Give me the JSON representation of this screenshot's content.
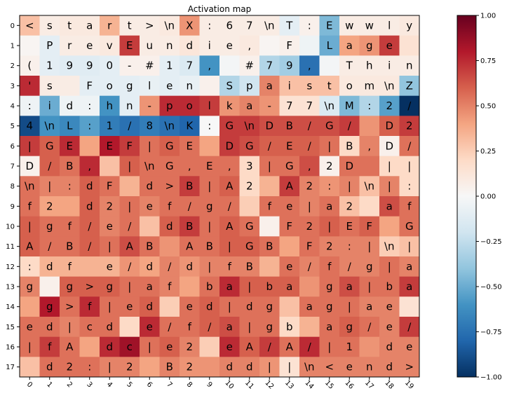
{
  "chart_data": {
    "type": "heatmap",
    "title": "Activation map",
    "x_ticks": [
      "0",
      "1",
      "2",
      "3",
      "4",
      "5",
      "6",
      "7",
      "8",
      "9",
      "10",
      "11",
      "12",
      "13",
      "14",
      "15",
      "16",
      "17",
      "18",
      "19"
    ],
    "y_ticks": [
      "0",
      "1",
      "2",
      "3",
      "4",
      "5",
      "6",
      "7",
      "8",
      "9",
      "10",
      "11",
      "12",
      "13",
      "14",
      "15",
      "16",
      "17"
    ],
    "colorbar": {
      "ticks": [
        "1.00",
        "0.75",
        "0.50",
        "0.25",
        "0.00",
        "−0.25",
        "−0.50",
        "−0.75",
        "−1.00"
      ],
      "range": [
        -1,
        1
      ],
      "colormap": "RdBu_r"
    },
    "rows": [
      {
        "chars": [
          "<",
          "s",
          "t",
          "a",
          "r",
          "t",
          ">",
          "\\n",
          "X",
          ":",
          "6",
          "7",
          "\\n",
          "T",
          ":",
          "E",
          "w",
          "w",
          "l",
          "y"
        ],
        "values": [
          0.3,
          0.08,
          0.1,
          0.1,
          0.35,
          0.08,
          0.08,
          0.1,
          0.45,
          0.08,
          0.08,
          0.08,
          0.08,
          -0.1,
          0.05,
          -0.45,
          0.08,
          0.08,
          0.08,
          0.1
        ]
      },
      {
        "chars": [
          "",
          "P",
          "r",
          "e",
          "v",
          "E",
          "u",
          "n",
          "d",
          "i",
          "e",
          ",",
          "",
          "F",
          "",
          "L",
          "a",
          "g",
          "e",
          ""
        ],
        "values": [
          0.02,
          -0.1,
          0.08,
          0.08,
          0.1,
          0.7,
          0.08,
          0.08,
          0.12,
          0.08,
          0.08,
          0.1,
          0.02,
          0.05,
          -0.05,
          -0.5,
          0.4,
          0.45,
          0.7,
          0.15
        ]
      },
      {
        "chars": [
          "(",
          "1",
          "9",
          "9",
          "0",
          "-",
          "#",
          "1",
          "7",
          ",",
          "",
          "#",
          "7",
          "9",
          ",",
          "",
          "T",
          "h",
          "i",
          "n"
        ],
        "values": [
          0.05,
          -0.1,
          -0.12,
          -0.12,
          -0.1,
          0.05,
          0.05,
          -0.1,
          -0.15,
          -0.6,
          -0.02,
          0.05,
          -0.3,
          -0.35,
          -0.75,
          -0.02,
          0.08,
          0.08,
          0.08,
          0.08
        ]
      },
      {
        "chars": [
          "'",
          "s",
          "",
          "F",
          "o",
          "g",
          "l",
          "e",
          "n",
          "",
          "S",
          "p",
          "a",
          "i",
          "s",
          "t",
          "o",
          "m",
          "\\n",
          "Z"
        ],
        "values": [
          0.75,
          0.08,
          0.08,
          -0.1,
          -0.1,
          -0.1,
          -0.08,
          -0.1,
          -0.08,
          0.05,
          -0.3,
          -0.2,
          0.5,
          0.3,
          0.3,
          0.3,
          0.1,
          0.1,
          0.1,
          -0.4
        ]
      },
      {
        "chars": [
          ":",
          "i",
          "d",
          ":",
          "h",
          "n",
          "-",
          "p",
          "o",
          "l",
          "k",
          "a",
          "-",
          "7",
          "7",
          "\\n",
          "M",
          ":",
          "2",
          "/"
        ],
        "values": [
          -0.05,
          -0.5,
          -0.05,
          -0.05,
          -0.6,
          -0.1,
          0.45,
          0.75,
          0.75,
          0.7,
          0.45,
          0.5,
          0.45,
          0.15,
          0.15,
          -0.15,
          -0.45,
          -0.3,
          -0.55,
          -1.0
        ]
      },
      {
        "chars": [
          "4",
          "\\n",
          "L",
          ":",
          "1",
          "/",
          "8",
          "\\n",
          "K",
          ":",
          "G",
          "\\n",
          "D",
          "B",
          "/",
          "G",
          "/",
          "",
          "D",
          "2"
        ],
        "values": [
          -0.9,
          -0.6,
          -0.65,
          -0.55,
          -0.7,
          -0.75,
          -0.7,
          -0.75,
          -0.8,
          0.0,
          0.7,
          0.7,
          0.65,
          0.65,
          0.65,
          0.65,
          0.7,
          0.45,
          0.6,
          0.7
        ]
      },
      {
        "chars": [
          "|",
          "G",
          "E",
          "",
          "E",
          "F",
          "|",
          "G",
          "E",
          "",
          "D",
          "G",
          "/",
          "E",
          "/",
          "|",
          "B",
          ",",
          "D",
          "/"
        ],
        "values": [
          0.7,
          0.6,
          0.75,
          0.4,
          0.8,
          0.7,
          0.55,
          0.6,
          0.55,
          0.4,
          0.7,
          0.65,
          0.6,
          0.6,
          0.6,
          0.55,
          0.2,
          0.5,
          0.05,
          0.55
        ]
      },
      {
        "chars": [
          "D",
          "/",
          "B",
          ",",
          "",
          "|",
          "\\n",
          "G",
          ",",
          "E",
          ",",
          "3",
          "|",
          "G",
          ",",
          "2",
          "D",
          "",
          "|",
          "|"
        ],
        "values": [
          0.05,
          0.6,
          0.55,
          0.75,
          0.3,
          0.6,
          0.55,
          0.55,
          0.55,
          0.55,
          0.55,
          0.2,
          0.55,
          0.55,
          0.65,
          0.05,
          0.55,
          0.55,
          0.2,
          0.2
        ]
      },
      {
        "chars": [
          "\\n",
          "|",
          ":",
          "d",
          "F",
          "",
          "d",
          ">",
          "B",
          "|",
          "A",
          "2",
          "",
          "A",
          "2",
          ":",
          "|",
          "\\n",
          "|",
          ":"
        ],
        "values": [
          0.55,
          0.5,
          0.5,
          0.6,
          0.55,
          0.35,
          0.55,
          0.55,
          0.7,
          0.55,
          0.6,
          0.2,
          0.35,
          0.7,
          0.5,
          0.45,
          0.5,
          0.3,
          0.5,
          0.2
        ]
      },
      {
        "chars": [
          "f",
          "2",
          "",
          "d",
          "2",
          "|",
          "e",
          "f",
          "/",
          "g",
          "/",
          "",
          "f",
          "e",
          "|",
          "a",
          "2",
          "",
          "a",
          "f"
        ],
        "values": [
          0.55,
          0.4,
          0.4,
          0.6,
          0.5,
          0.55,
          0.5,
          0.55,
          0.55,
          0.55,
          0.55,
          0.25,
          0.55,
          0.55,
          0.5,
          0.55,
          0.3,
          0.2,
          0.65,
          0.55
        ]
      },
      {
        "chars": [
          "|",
          "g",
          "f",
          "/",
          "e",
          "/",
          "",
          "d",
          "B",
          "|",
          "A",
          "G",
          "",
          "F",
          "2",
          "|",
          "E",
          "F",
          "",
          "G"
        ],
        "values": [
          0.6,
          0.55,
          0.55,
          0.6,
          0.5,
          0.55,
          0.3,
          0.6,
          0.7,
          0.55,
          0.6,
          0.55,
          0.05,
          0.55,
          0.55,
          0.6,
          0.55,
          0.6,
          0.4,
          0.55
        ]
      },
      {
        "chars": [
          "A",
          "/",
          "B",
          "/",
          "|",
          "A",
          "B",
          "",
          "A",
          "B",
          "|",
          "G",
          "B",
          "",
          "F",
          "2",
          ":",
          "|",
          "\\n",
          "|"
        ],
        "values": [
          0.6,
          0.55,
          0.55,
          0.6,
          0.55,
          0.65,
          0.55,
          0.45,
          0.55,
          0.55,
          0.6,
          0.6,
          0.55,
          0.4,
          0.55,
          0.5,
          0.5,
          0.5,
          0.25,
          0.3
        ]
      },
      {
        "chars": [
          ":",
          "d",
          "f",
          "",
          "e",
          "/",
          "d",
          "/",
          "d",
          "|",
          "f",
          "B",
          "",
          "e",
          "/",
          "f",
          "/",
          "g",
          "|",
          "a"
        ],
        "values": [
          0.2,
          0.35,
          0.35,
          0.35,
          0.35,
          0.45,
          0.4,
          0.5,
          0.45,
          0.5,
          0.5,
          0.5,
          0.35,
          0.55,
          0.5,
          0.55,
          0.5,
          0.5,
          0.55,
          0.5
        ]
      },
      {
        "chars": [
          "g",
          "",
          "g",
          ">",
          "g",
          "|",
          "a",
          "f",
          "",
          "b",
          "a",
          "|",
          "b",
          "a",
          "",
          "g",
          "a",
          "|",
          "b",
          "a"
        ],
        "values": [
          0.5,
          0.05,
          0.6,
          0.6,
          0.6,
          0.55,
          0.55,
          0.5,
          0.4,
          0.55,
          0.75,
          0.6,
          0.6,
          0.6,
          0.45,
          0.55,
          0.65,
          0.55,
          0.55,
          0.7
        ]
      },
      {
        "chars": [
          "",
          "g",
          ">",
          "f",
          "|",
          "e",
          "d",
          "",
          "e",
          "d",
          "|",
          "d",
          "g",
          "",
          "a",
          "g",
          "|",
          "a",
          "e",
          ""
        ],
        "values": [
          0.4,
          0.8,
          0.55,
          0.75,
          0.55,
          0.55,
          0.6,
          0.25,
          0.55,
          0.6,
          0.55,
          0.55,
          0.55,
          0.3,
          0.55,
          0.55,
          0.55,
          0.5,
          0.5,
          0.15
        ]
      },
      {
        "chars": [
          "e",
          "d",
          "|",
          "c",
          "d",
          "",
          "e",
          "/",
          "f",
          "/",
          "a",
          "|",
          "g",
          "b",
          "",
          "a",
          "g",
          "/",
          "e",
          "/"
        ],
        "values": [
          0.55,
          0.55,
          0.5,
          0.55,
          0.55,
          0.2,
          0.75,
          0.55,
          0.55,
          0.6,
          0.65,
          0.55,
          0.55,
          0.2,
          0.35,
          0.55,
          0.6,
          0.55,
          0.5,
          0.7
        ]
      },
      {
        "chars": [
          "|",
          "f",
          "A",
          "",
          "d",
          "c",
          "|",
          "e",
          "2",
          "",
          "e",
          "A",
          "/",
          "A",
          "/",
          "|",
          "1",
          "",
          "d",
          "e"
        ],
        "values": [
          0.55,
          0.7,
          0.55,
          0.4,
          0.75,
          0.85,
          0.55,
          0.6,
          0.5,
          0.25,
          0.75,
          0.6,
          0.7,
          0.55,
          0.75,
          0.55,
          0.55,
          0.45,
          0.5,
          0.5
        ]
      },
      {
        "chars": [
          "",
          "d",
          "2",
          ":",
          "|",
          "2",
          "",
          "B",
          "2",
          "",
          "d",
          "d",
          "|",
          "|",
          "\\n",
          "<",
          "e",
          "n",
          "d",
          ">"
        ],
        "values": [
          0.3,
          0.55,
          0.55,
          0.55,
          0.5,
          0.5,
          0.4,
          0.5,
          0.45,
          0.45,
          0.5,
          0.5,
          0.45,
          0.15,
          0.5,
          0.5,
          0.5,
          0.5,
          0.5,
          0.5
        ]
      }
    ]
  }
}
